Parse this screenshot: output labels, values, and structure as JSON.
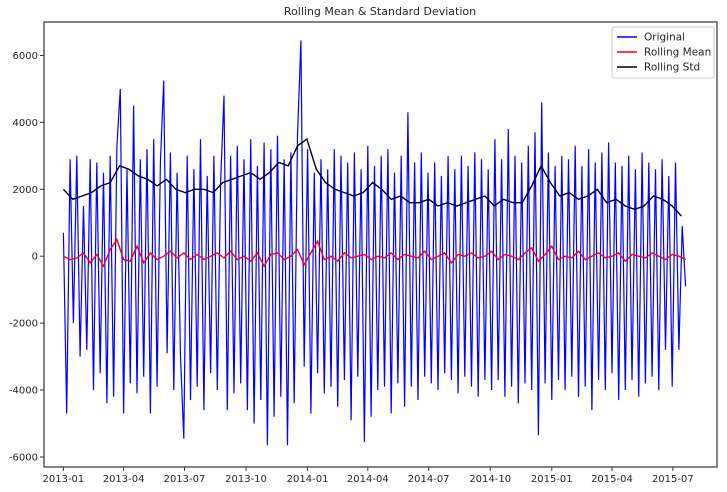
{
  "chart_data": {
    "type": "line",
    "title": "Rolling Mean & Standard Deviation",
    "xlabel": "",
    "ylabel": "",
    "ylim": [
      -6300,
      7000
    ],
    "xlim": [
      "2012-12-03",
      "2015-09-05"
    ],
    "yticks": [
      "-6000",
      "-4000",
      "-2000",
      "0",
      "2000",
      "4000",
      "6000"
    ],
    "xticks": [
      "2013-01",
      "2013-04",
      "2013-07",
      "2013-10",
      "2014-01",
      "2014-04",
      "2014-07",
      "2014-10",
      "2015-01",
      "2015-04",
      "2015-07"
    ],
    "grid": false,
    "legend_position": "top-right",
    "series": [
      {
        "name": "Original",
        "color": "#0000ff",
        "start": "2013-01-01",
        "step_days": 5,
        "values": [
          700,
          -4700,
          2900,
          -2000,
          3000,
          -3000,
          1500,
          -2800,
          2900,
          -4000,
          2800,
          -3500,
          2500,
          -4400,
          3000,
          -4200,
          3300,
          5000,
          -4700,
          2600,
          -3800,
          4500,
          -4100,
          2900,
          -3600,
          3200,
          -4700,
          3500,
          -3900,
          2800,
          5250,
          -2900,
          3100,
          -4000,
          2500,
          -3000,
          -5450,
          3000,
          -4300,
          2600,
          -3900,
          3500,
          -4600,
          2400,
          -3500,
          3000,
          -4000,
          2200,
          4800,
          -4600,
          3000,
          -4100,
          3300,
          -3800,
          2900,
          -4600,
          3500,
          -5000,
          2700,
          -4300,
          3400,
          -5650,
          3200,
          -4800,
          3600,
          -4200,
          2900,
          -5650,
          3100,
          -4400,
          3600,
          6450,
          -3300,
          3200,
          -4700,
          2500,
          -3500,
          2900,
          -4100,
          2600,
          -3900,
          3200,
          -4500,
          3000,
          -3700,
          2800,
          -4900,
          3100,
          -3600,
          2600,
          -5550,
          3300,
          -4800,
          2700,
          -4000,
          3000,
          -3900,
          3200,
          -4700,
          2500,
          -3800,
          3000,
          -4500,
          4300,
          -3900,
          2800,
          -4300,
          3100,
          -3600,
          2500,
          -3800,
          2800,
          -4000,
          2400,
          -3500,
          3000,
          -3700,
          2600,
          -4100,
          3000,
          -3600,
          2700,
          -3900,
          3100,
          -4200,
          2900,
          -3700,
          2600,
          -4000,
          3500,
          -3700,
          2900,
          -4200,
          3800,
          -3900,
          3000,
          -4400,
          2800,
          -3800,
          3300,
          -4000,
          3700,
          -5350,
          4600,
          -3800,
          3100,
          -4300,
          2700,
          -3700,
          3000,
          -4000,
          2900,
          -3600,
          3300,
          -4200,
          2700,
          -3900,
          3200,
          -4600,
          2800,
          -3700,
          3100,
          -4000,
          3400,
          -3500,
          2800,
          -4300,
          2700,
          -4000,
          3000,
          -3700,
          2600,
          -4200,
          3100,
          -3800,
          2800,
          -3600,
          2600,
          -4000,
          2900,
          -2800,
          2400,
          -3900,
          2800,
          -2800,
          900,
          -900
        ]
      },
      {
        "name": "Rolling Mean",
        "color": "#ff0000",
        "start": "2013-01-01",
        "step_days": 10,
        "values": [
          0,
          -100,
          -50,
          100,
          -200,
          50,
          -300,
          200,
          500,
          -100,
          -150,
          300,
          -200,
          100,
          -100,
          0,
          150,
          -50,
          100,
          -100,
          50,
          -100,
          0,
          100,
          -50,
          150,
          -100,
          0,
          -150,
          100,
          -300,
          50,
          100,
          -100,
          0,
          200,
          -250,
          100,
          450,
          -100,
          0,
          -150,
          100,
          -50,
          0,
          50,
          -100,
          0,
          -50,
          100,
          -100,
          50,
          0,
          -50,
          150,
          -100,
          0,
          100,
          -200,
          50,
          0,
          100,
          -50,
          0,
          150,
          -100,
          50,
          0,
          -100,
          100,
          250,
          -150,
          50,
          300,
          -100,
          0,
          -50,
          150,
          -100,
          0,
          100,
          -50,
          0,
          100,
          -150,
          50,
          0,
          -50,
          100,
          0,
          -100,
          50,
          0,
          -100
        ]
      },
      {
        "name": "Rolling Std",
        "color": "#000000",
        "start": "2013-01-01",
        "step_days": 14,
        "values": [
          2000,
          1700,
          1800,
          1900,
          2100,
          2200,
          2700,
          2600,
          2400,
          2300,
          2100,
          2300,
          2000,
          1900,
          2000,
          2000,
          1900,
          2200,
          2300,
          2400,
          2500,
          2300,
          2500,
          2800,
          2700,
          3300,
          3500,
          2600,
          2200,
          2000,
          1900,
          1800,
          1900,
          2200,
          2000,
          1700,
          1800,
          1600,
          1600,
          1700,
          1500,
          1600,
          1500,
          1600,
          1700,
          1800,
          1500,
          1700,
          1600,
          1600,
          2100,
          2700,
          2200,
          1800,
          1900,
          1700,
          1800,
          2000,
          1600,
          1700,
          1500,
          1400,
          1500,
          1800,
          1700,
          1500,
          1200
        ]
      }
    ]
  }
}
